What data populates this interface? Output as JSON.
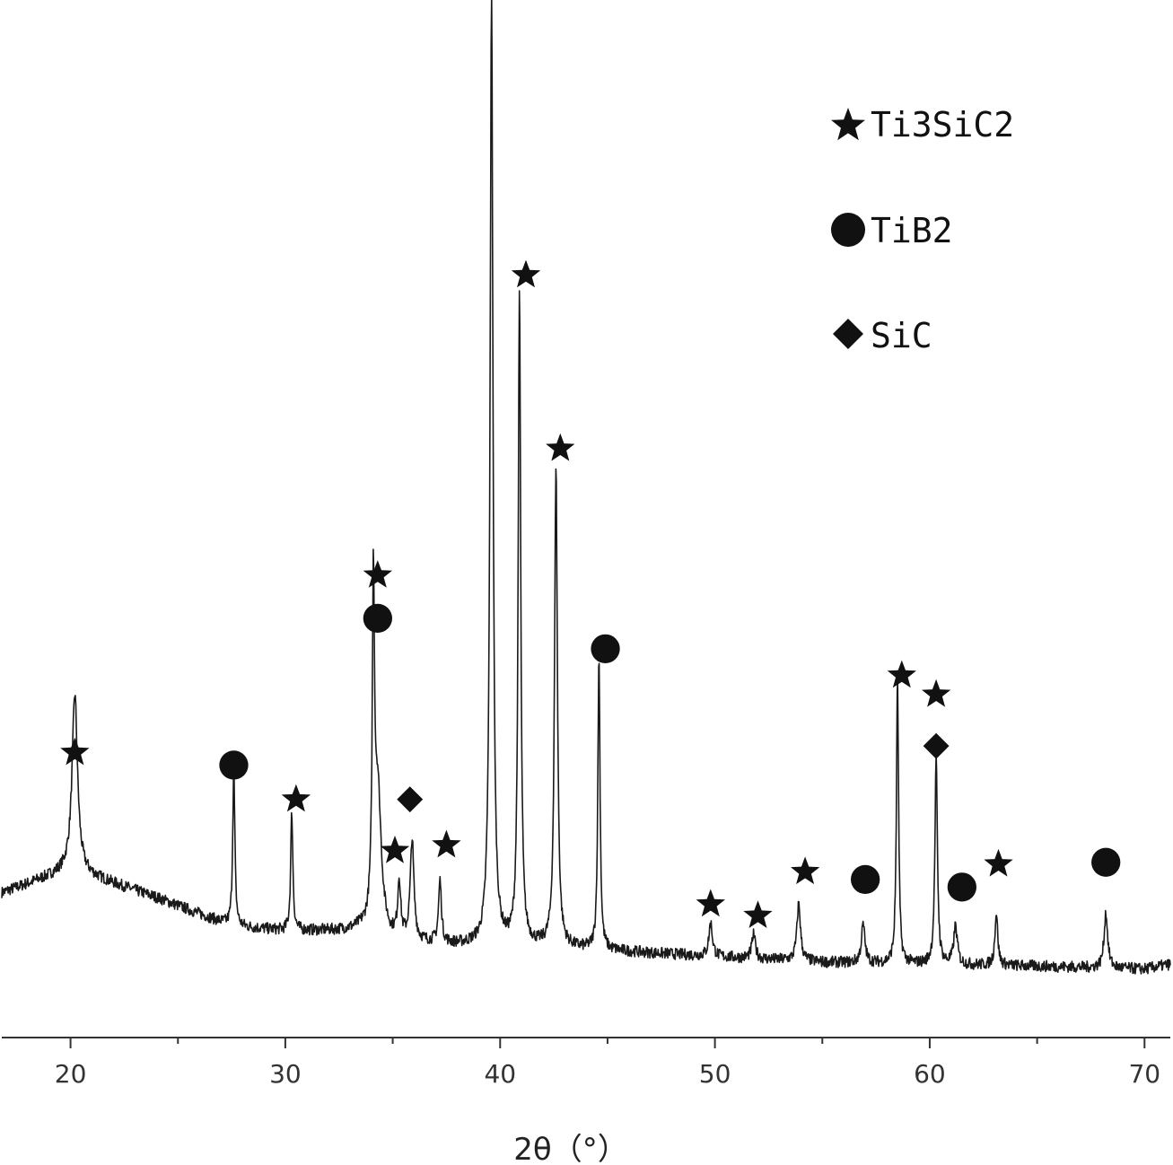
{
  "chart_data": {
    "type": "line",
    "title": "",
    "xlabel": "2θ（°）",
    "ylabel": "",
    "xlim": [
      16.8,
      71.2
    ],
    "ylim": [
      0,
      1.0
    ],
    "grid": false,
    "y_axis_shown": false,
    "x_ticks": [
      20,
      30,
      40,
      50,
      60,
      70
    ],
    "x_tick_labels": [
      "20",
      "30",
      "40",
      "50",
      "60",
      "70"
    ],
    "x_minor_ticks": [
      25,
      35,
      45,
      55,
      65
    ],
    "legend": {
      "placement": "top-right",
      "entries": [
        {
          "marker": "star",
          "label": "Ti3SiC2"
        },
        {
          "marker": "circle",
          "label": "TiB2"
        },
        {
          "marker": "diamond",
          "label": "SiC"
        }
      ]
    },
    "series": [
      {
        "baseline": [
          [
            16.8,
            0.085
          ],
          [
            20,
            0.11
          ],
          [
            24,
            0.08
          ],
          [
            27.5,
            0.05
          ],
          [
            30,
            0.045
          ],
          [
            33.5,
            0.045
          ],
          [
            34.5,
            0.035
          ],
          [
            38,
            0.03
          ],
          [
            41,
            0.03
          ],
          [
            44.5,
            0.025
          ],
          [
            50,
            0.018
          ],
          [
            55,
            0.012
          ],
          [
            60,
            0.01
          ],
          [
            65,
            0.008
          ],
          [
            70,
            0.005
          ],
          [
            71.2,
            0.01
          ]
        ],
        "peaks": [
          {
            "x": 20.2,
            "height": 0.185,
            "width": 0.15
          },
          {
            "x": 27.6,
            "height": 0.165,
            "width": 0.06
          },
          {
            "x": 30.3,
            "height": 0.125,
            "width": 0.06
          },
          {
            "x": 34.1,
            "height": 0.33,
            "width": 0.06
          },
          {
            "x": 34.3,
            "height": 0.155,
            "width": 0.2
          },
          {
            "x": 35.3,
            "height": 0.06,
            "width": 0.08
          },
          {
            "x": 35.9,
            "height": 0.105,
            "width": 0.1
          },
          {
            "x": 37.2,
            "height": 0.065,
            "width": 0.08
          },
          {
            "x": 39.6,
            "height": 1.0,
            "width": 0.08
          },
          {
            "x": 40.9,
            "height": 0.685,
            "width": 0.07
          },
          {
            "x": 42.6,
            "height": 0.505,
            "width": 0.08
          },
          {
            "x": 44.6,
            "height": 0.31,
            "width": 0.06
          },
          {
            "x": 49.8,
            "height": 0.035,
            "width": 0.1
          },
          {
            "x": 51.8,
            "height": 0.025,
            "width": 0.1
          },
          {
            "x": 53.9,
            "height": 0.06,
            "width": 0.1
          },
          {
            "x": 56.9,
            "height": 0.04,
            "width": 0.1
          },
          {
            "x": 58.5,
            "height": 0.3,
            "width": 0.06
          },
          {
            "x": 60.3,
            "height": 0.215,
            "width": 0.07
          },
          {
            "x": 61.2,
            "height": 0.04,
            "width": 0.1
          },
          {
            "x": 63.1,
            "height": 0.055,
            "width": 0.08
          },
          {
            "x": 68.2,
            "height": 0.058,
            "width": 0.1
          }
        ]
      }
    ],
    "markers": [
      {
        "symbol": "star",
        "x": 20.2,
        "y": 0.232
      },
      {
        "symbol": "circle",
        "x": 27.6,
        "y": 0.219
      },
      {
        "symbol": "star",
        "x": 30.5,
        "y": 0.183
      },
      {
        "symbol": "star",
        "x": 34.3,
        "y": 0.418
      },
      {
        "symbol": "circle",
        "x": 34.3,
        "y": 0.373
      },
      {
        "symbol": "star",
        "x": 35.1,
        "y": 0.129
      },
      {
        "symbol": "diamond",
        "x": 35.8,
        "y": 0.183
      },
      {
        "symbol": "star",
        "x": 37.5,
        "y": 0.135
      },
      {
        "symbol": "star",
        "x": 39.6,
        "y": 1.045
      },
      {
        "symbol": "star",
        "x": 41.2,
        "y": 0.733
      },
      {
        "symbol": "star",
        "x": 42.8,
        "y": 0.551
      },
      {
        "symbol": "circle",
        "x": 44.9,
        "y": 0.341
      },
      {
        "symbol": "star",
        "x": 49.8,
        "y": 0.073
      },
      {
        "symbol": "star",
        "x": 52.0,
        "y": 0.061
      },
      {
        "symbol": "star",
        "x": 54.2,
        "y": 0.107
      },
      {
        "symbol": "circle",
        "x": 57.0,
        "y": 0.099
      },
      {
        "symbol": "star",
        "x": 58.7,
        "y": 0.313
      },
      {
        "symbol": "star",
        "x": 60.3,
        "y": 0.293
      },
      {
        "symbol": "diamond",
        "x": 60.3,
        "y": 0.239
      },
      {
        "symbol": "circle",
        "x": 61.5,
        "y": 0.091
      },
      {
        "symbol": "star",
        "x": 63.2,
        "y": 0.115
      },
      {
        "symbol": "circle",
        "x": 68.2,
        "y": 0.117
      }
    ],
    "colors": {
      "line": "#1a1a1a",
      "markers": "#111111",
      "axis": "#333333"
    }
  }
}
